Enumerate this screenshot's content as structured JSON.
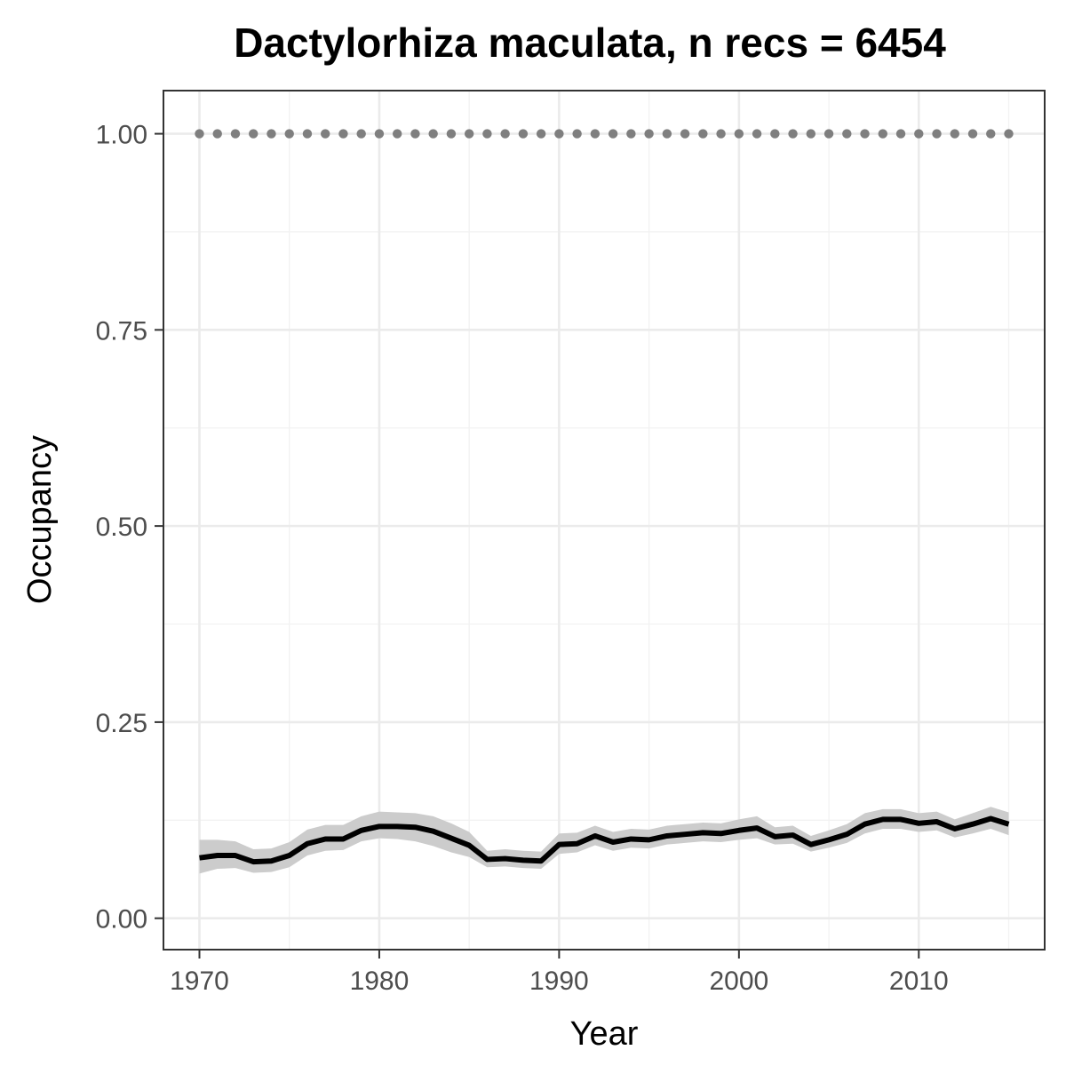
{
  "chart_data": {
    "type": "line",
    "title": "Dactylorhiza maculata, n recs = 6454",
    "xlabel": "Year",
    "ylabel": "Occupancy",
    "xlim": [
      1968,
      2017
    ],
    "ylim": [
      -0.04,
      1.055
    ],
    "x_ticks": [
      1970,
      1980,
      1990,
      2000,
      2010
    ],
    "y_ticks": [
      0.0,
      0.25,
      0.5,
      0.75,
      1.0
    ],
    "x_tick_labels": [
      "1970",
      "1980",
      "1990",
      "2000",
      "2010"
    ],
    "y_tick_labels": [
      "0.00",
      "0.25",
      "0.50",
      "0.75",
      "1.00"
    ],
    "grid": true,
    "legend": "none",
    "x": [
      1970,
      1971,
      1972,
      1973,
      1974,
      1975,
      1976,
      1977,
      1978,
      1979,
      1980,
      1981,
      1982,
      1983,
      1984,
      1985,
      1986,
      1987,
      1988,
      1989,
      1990,
      1991,
      1992,
      1993,
      1994,
      1995,
      1996,
      1997,
      1998,
      1999,
      2000,
      2001,
      2002,
      2003,
      2004,
      2005,
      2006,
      2007,
      2008,
      2009,
      2010,
      2011,
      2012,
      2013,
      2014,
      2015
    ],
    "series": [
      {
        "style": "dotted",
        "color": "#7f7f7f",
        "values": [
          1,
          1,
          1,
          1,
          1,
          1,
          1,
          1,
          1,
          1,
          1,
          1,
          1,
          1,
          1,
          1,
          1,
          1,
          1,
          1,
          1,
          1,
          1,
          1,
          1,
          1,
          1,
          1,
          1,
          1,
          1,
          1,
          1,
          1,
          1,
          1,
          1,
          1,
          1,
          1,
          1,
          1,
          1,
          1,
          1,
          1
        ]
      },
      {
        "style": "solid",
        "color": "#000000",
        "ribbon_color": "#cccccc",
        "values": [
          0.077,
          0.08,
          0.08,
          0.072,
          0.073,
          0.08,
          0.095,
          0.101,
          0.101,
          0.112,
          0.117,
          0.117,
          0.116,
          0.111,
          0.102,
          0.093,
          0.075,
          0.076,
          0.074,
          0.073,
          0.094,
          0.095,
          0.105,
          0.097,
          0.101,
          0.1,
          0.105,
          0.107,
          0.109,
          0.108,
          0.112,
          0.115,
          0.104,
          0.106,
          0.094,
          0.1,
          0.107,
          0.12,
          0.126,
          0.126,
          0.121,
          0.123,
          0.114,
          0.12,
          0.127,
          0.12
        ],
        "lower": [
          0.057,
          0.063,
          0.064,
          0.058,
          0.059,
          0.065,
          0.08,
          0.086,
          0.087,
          0.098,
          0.102,
          0.101,
          0.098,
          0.092,
          0.084,
          0.078,
          0.065,
          0.066,
          0.064,
          0.063,
          0.082,
          0.084,
          0.093,
          0.086,
          0.09,
          0.089,
          0.094,
          0.096,
          0.098,
          0.097,
          0.1,
          0.102,
          0.094,
          0.095,
          0.085,
          0.09,
          0.096,
          0.108,
          0.114,
          0.114,
          0.11,
          0.112,
          0.103,
          0.108,
          0.114,
          0.106
        ],
        "upper": [
          0.1,
          0.1,
          0.098,
          0.088,
          0.089,
          0.097,
          0.113,
          0.119,
          0.119,
          0.13,
          0.136,
          0.135,
          0.134,
          0.13,
          0.121,
          0.11,
          0.086,
          0.088,
          0.086,
          0.085,
          0.108,
          0.109,
          0.118,
          0.11,
          0.114,
          0.113,
          0.118,
          0.12,
          0.122,
          0.121,
          0.126,
          0.13,
          0.116,
          0.118,
          0.105,
          0.112,
          0.12,
          0.134,
          0.139,
          0.139,
          0.134,
          0.136,
          0.126,
          0.134,
          0.142,
          0.135
        ]
      }
    ]
  }
}
